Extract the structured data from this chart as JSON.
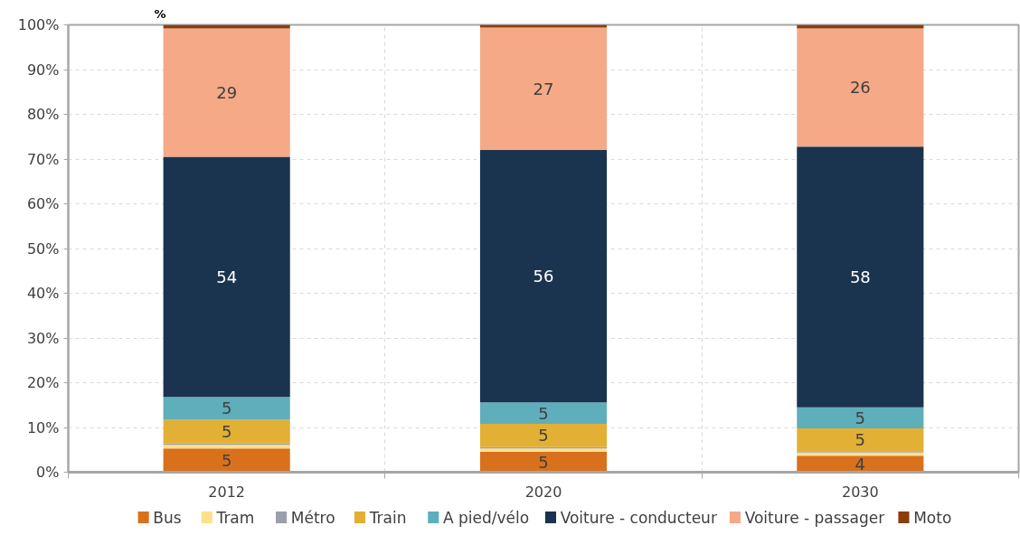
{
  "chart_data": {
    "type": "bar",
    "stacked": true,
    "ylabel": "%",
    "categories": [
      "2012",
      "2020",
      "2030"
    ],
    "ylim": [
      0,
      100
    ],
    "yticks": [
      {
        "value": 0,
        "label": "0%"
      },
      {
        "value": 10,
        "label": "10%"
      },
      {
        "value": 20,
        "label": "20%"
      },
      {
        "value": 30,
        "label": "30%"
      },
      {
        "value": 40,
        "label": "40%"
      },
      {
        "value": 50,
        "label": "50%"
      },
      {
        "value": 60,
        "label": "60%"
      },
      {
        "value": 70,
        "label": "70%"
      },
      {
        "value": 80,
        "label": "80%"
      },
      {
        "value": 90,
        "label": "90%"
      },
      {
        "value": 100,
        "label": "100%"
      }
    ],
    "grid": true,
    "legend": "bottom",
    "series": [
      {
        "name": "Bus",
        "color": "#d9711c",
        "values": [
          5.3,
          4.6,
          3.7
        ],
        "value_labels": [
          "5",
          "5",
          "4"
        ]
      },
      {
        "name": "Tram",
        "color": "#fde08a",
        "values": [
          0.8,
          0.7,
          0.7
        ]
      },
      {
        "name": "Métro",
        "color": "#9aa0ab",
        "values": [
          0.3,
          0.3,
          0.3
        ]
      },
      {
        "name": "Train",
        "color": "#e2b034",
        "values": [
          5.3,
          5.2,
          5.1
        ],
        "value_labels": [
          "5",
          "5",
          "5"
        ]
      },
      {
        "name": "A pied/vélo",
        "color": "#5faebb",
        "values": [
          5.1,
          4.8,
          4.7
        ],
        "value_labels": [
          "5",
          "5",
          "5"
        ]
      },
      {
        "name": "Voiture - conducteur",
        "color": "#1a334f",
        "values": [
          53.7,
          56.4,
          58.3
        ],
        "value_labels": [
          "54",
          "56",
          "58"
        ]
      },
      {
        "name": "Voiture - passager",
        "color": "#f5a987",
        "values": [
          28.7,
          27.4,
          26.4
        ],
        "value_labels": [
          "29",
          "27",
          "26"
        ]
      },
      {
        "name": "Moto",
        "color": "#8b3e0a",
        "values": [
          0.8,
          0.6,
          0.8
        ]
      }
    ]
  }
}
